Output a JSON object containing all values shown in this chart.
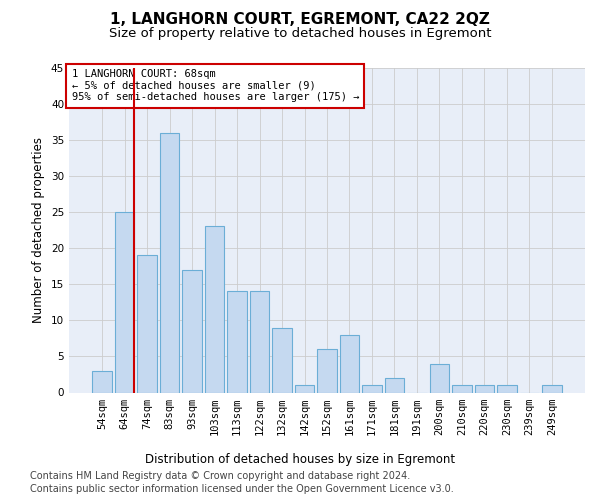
{
  "title": "1, LANGHORN COURT, EGREMONT, CA22 2QZ",
  "subtitle": "Size of property relative to detached houses in Egremont",
  "xlabel": "Distribution of detached houses by size in Egremont",
  "ylabel": "Number of detached properties",
  "categories": [
    "54sqm",
    "64sqm",
    "74sqm",
    "83sqm",
    "93sqm",
    "103sqm",
    "113sqm",
    "122sqm",
    "132sqm",
    "142sqm",
    "152sqm",
    "161sqm",
    "171sqm",
    "181sqm",
    "191sqm",
    "200sqm",
    "210sqm",
    "220sqm",
    "230sqm",
    "239sqm",
    "249sqm"
  ],
  "values": [
    3,
    25,
    19,
    36,
    17,
    23,
    14,
    14,
    9,
    1,
    6,
    8,
    1,
    2,
    0,
    4,
    1,
    1,
    1,
    0,
    1
  ],
  "bar_color": "#c5d9f0",
  "bar_edge_color": "#6baed6",
  "grid_color": "#cccccc",
  "annotation_box_color": "#ffffff",
  "annotation_border_color": "#cc0000",
  "annotation_text_line1": "1 LANGHORN COURT: 68sqm",
  "annotation_text_line2": "← 5% of detached houses are smaller (9)",
  "annotation_text_line3": "95% of semi-detached houses are larger (175) →",
  "vline_color": "#cc0000",
  "ylim": [
    0,
    45
  ],
  "yticks": [
    0,
    5,
    10,
    15,
    20,
    25,
    30,
    35,
    40,
    45
  ],
  "footer_line1": "Contains HM Land Registry data © Crown copyright and database right 2024.",
  "footer_line2": "Contains public sector information licensed under the Open Government Licence v3.0.",
  "background_color": "#e8eef8",
  "title_fontsize": 11,
  "subtitle_fontsize": 9.5,
  "ylabel_fontsize": 8.5,
  "tick_fontsize": 7.5,
  "annotation_fontsize": 7.5,
  "xlabel_fontsize": 8.5,
  "footer_fontsize": 7
}
